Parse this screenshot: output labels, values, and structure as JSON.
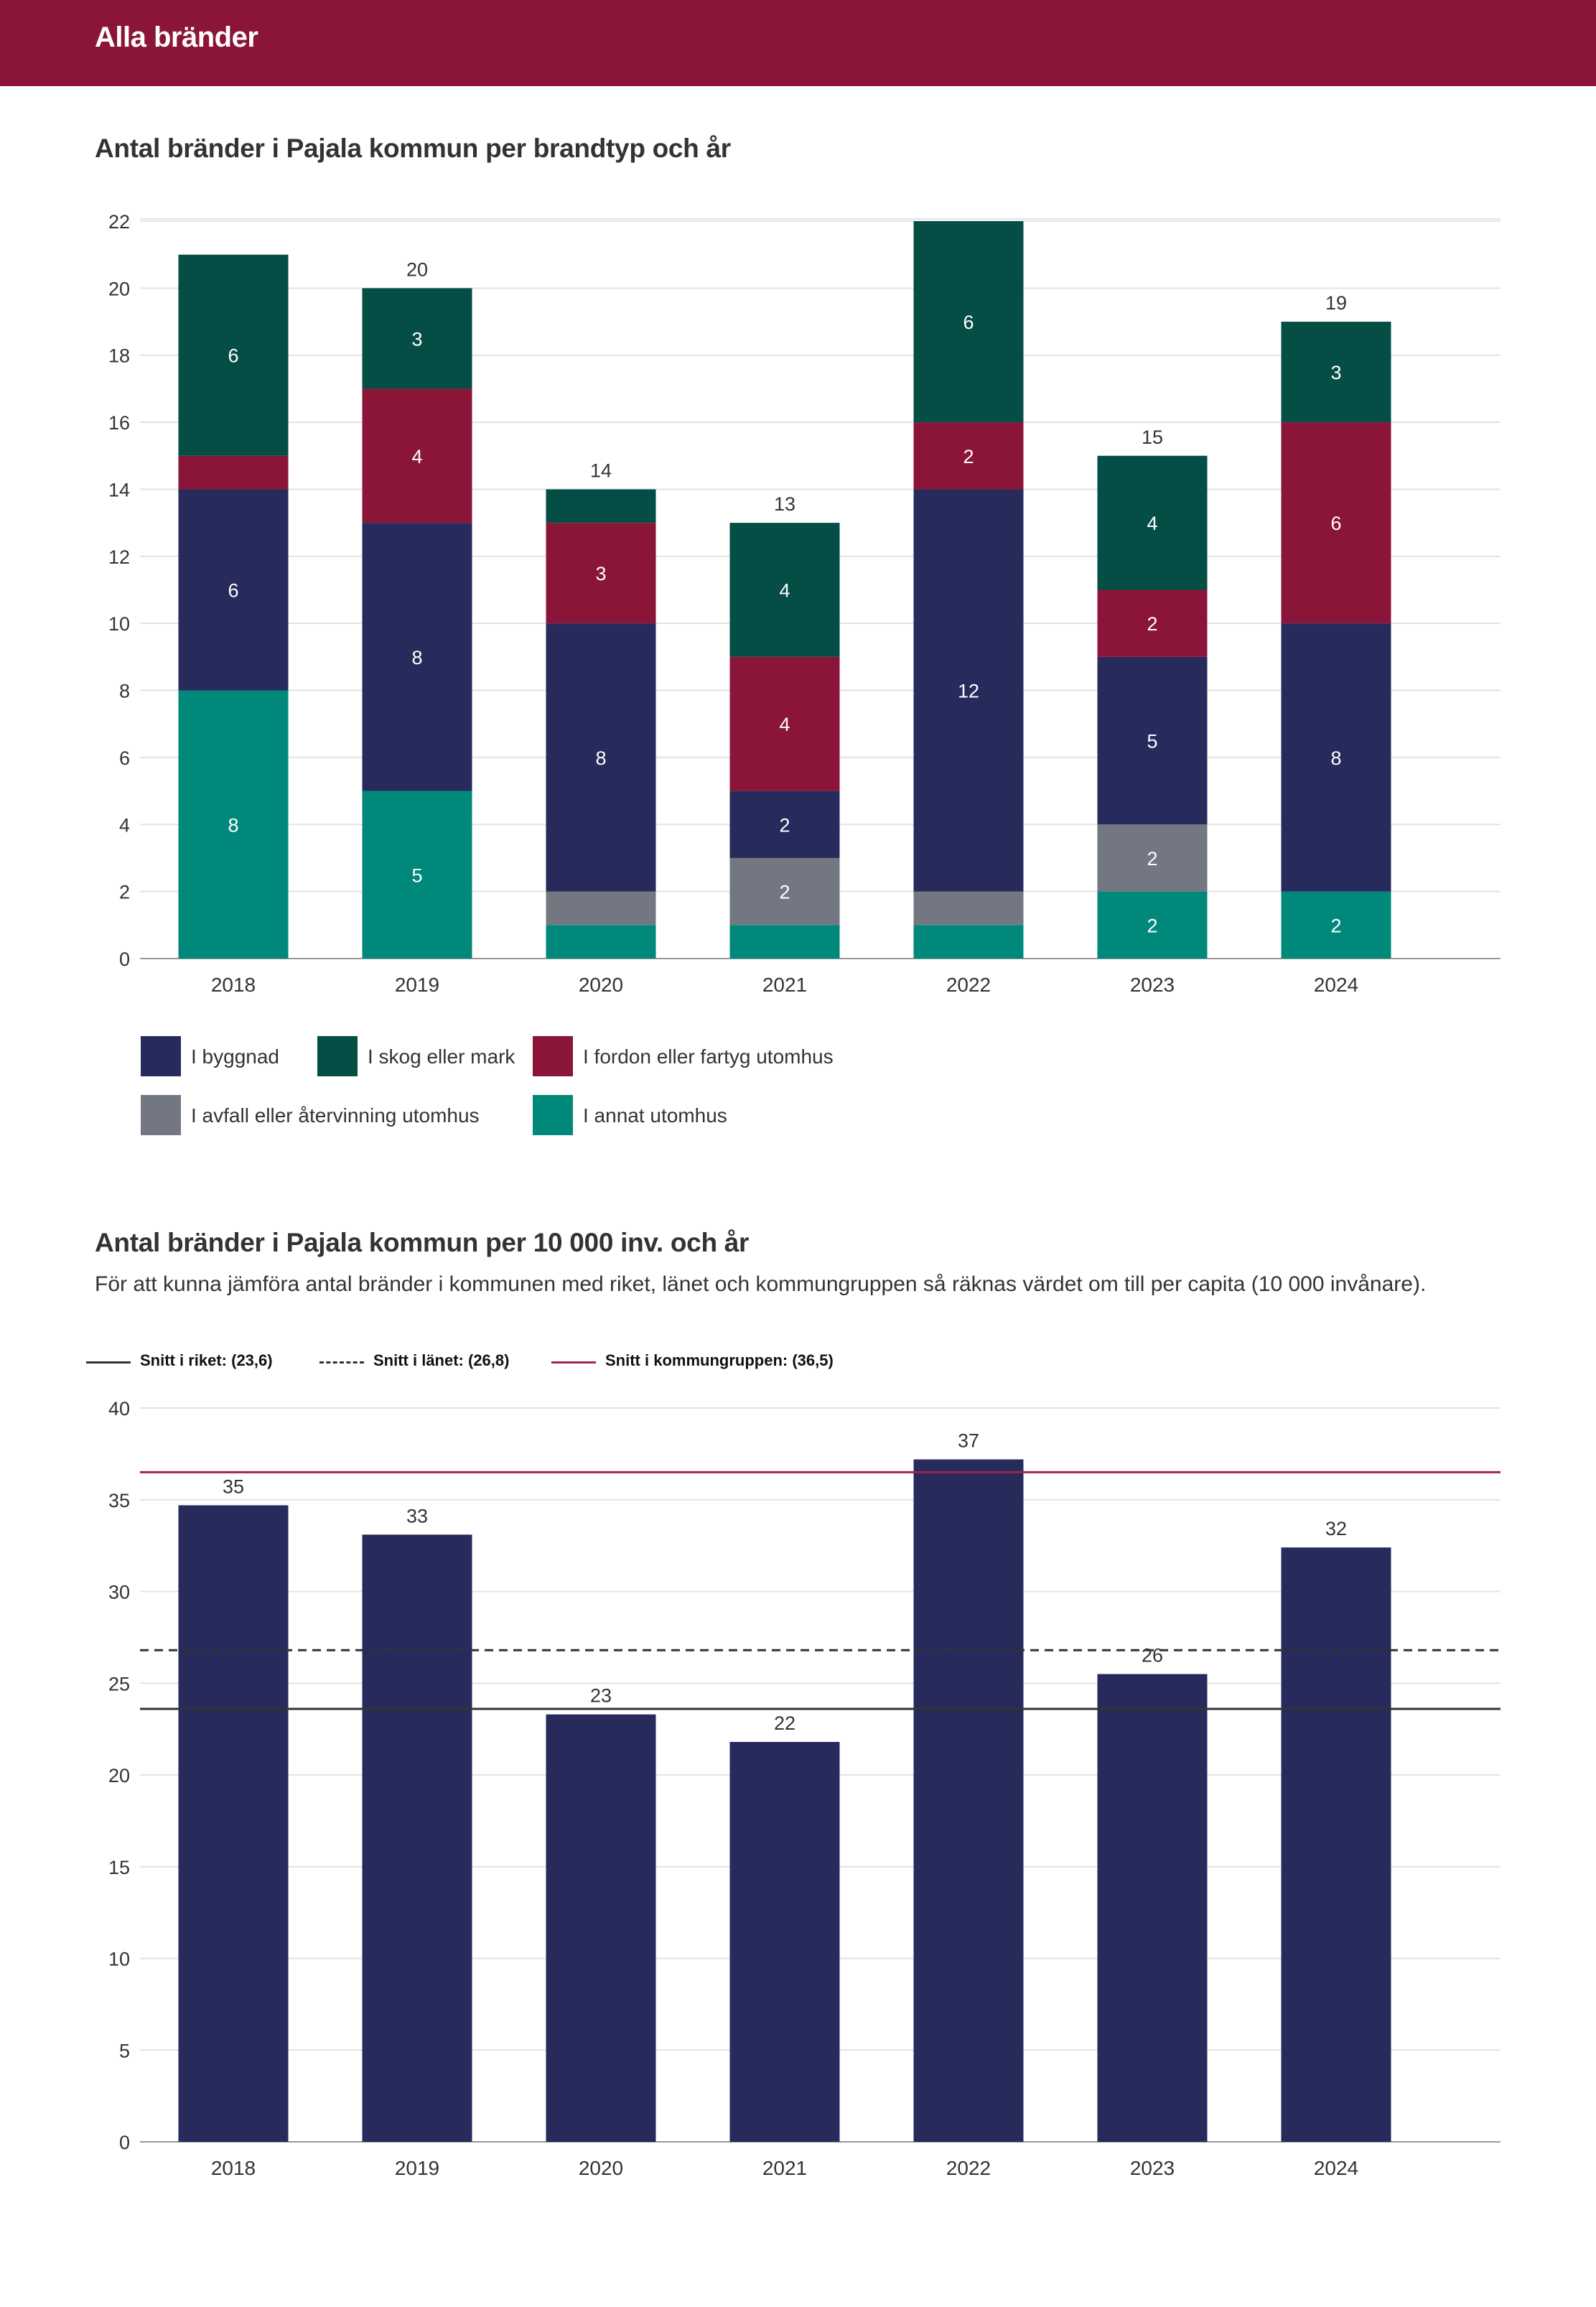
{
  "header": {
    "title": "Alla bränder"
  },
  "chart1": {
    "heading": "Antal bränder i Pajala kommun per brandtyp och år"
  },
  "chart2": {
    "heading": "Antal bränder i Pajala kommun per 10 000 inv. och år",
    "subtitle": "För att kunna jämföra antal bränder i kommunen med riket, länet och kommungruppen så räknas värdet om till per capita (10 000 invånare)."
  },
  "colors": {
    "header": "#8b1538",
    "byggnad": "#262b5c",
    "skog": "#044e45",
    "fordon": "#8b1538",
    "avfall": "#737781",
    "annat": "#00897b",
    "bar2": "#262b5c",
    "riket": "#333333",
    "lanet": "#333333",
    "kommungrupp": "#a3234a"
  },
  "chart_data": [
    {
      "type": "bar",
      "stacked": true,
      "title": "Antal bränder i Pajala kommun per brandtyp och år",
      "categories": [
        "2018",
        "2019",
        "2020",
        "2021",
        "2022",
        "2023",
        "2024"
      ],
      "series": [
        {
          "name": "I annat utomhus",
          "key": "annat",
          "values": [
            8,
            5,
            1,
            1,
            1,
            2,
            2
          ],
          "labels": [
            "8",
            "5",
            "",
            "",
            "",
            "2",
            "2"
          ]
        },
        {
          "name": "I avfall eller återvinning utomhus",
          "key": "avfall",
          "values": [
            0,
            0,
            1,
            2,
            1,
            2,
            0
          ],
          "labels": [
            "",
            "",
            "",
            "2",
            "",
            "2",
            ""
          ]
        },
        {
          "name": "I byggnad",
          "key": "byggnad",
          "values": [
            6,
            8,
            8,
            2,
            12,
            5,
            8
          ],
          "labels": [
            "6",
            "8",
            "8",
            "2",
            "12",
            "5",
            "8"
          ]
        },
        {
          "name": "I fordon eller fartyg utomhus",
          "key": "fordon",
          "values": [
            1,
            4,
            3,
            4,
            2,
            2,
            6
          ],
          "labels": [
            "",
            "4",
            "3",
            "4",
            "2",
            "2",
            "6"
          ]
        },
        {
          "name": "I skog eller mark",
          "key": "skog",
          "values": [
            6,
            3,
            1,
            4,
            6,
            4,
            3
          ],
          "labels": [
            "6",
            "3",
            "",
            "4",
            "6",
            "4",
            "3"
          ]
        }
      ],
      "totals": [
        "",
        "20",
        "14",
        "13",
        "",
        "15",
        "19"
      ],
      "yticks": [
        0,
        2,
        4,
        6,
        8,
        10,
        12,
        14,
        16,
        18,
        20,
        22
      ],
      "ylim": [
        0,
        22
      ],
      "legend": [
        {
          "key": "byggnad",
          "label": "I byggnad"
        },
        {
          "key": "skog",
          "label": "I skog eller mark"
        },
        {
          "key": "fordon",
          "label": "I fordon eller fartyg utomhus"
        },
        {
          "key": "avfall",
          "label": "I avfall eller återvinning utomhus"
        },
        {
          "key": "annat",
          "label": "I annat utomhus"
        }
      ]
    },
    {
      "type": "bar",
      "title": "Antal bränder i Pajala kommun per 10 000 inv. och år",
      "categories": [
        "2018",
        "2019",
        "2020",
        "2021",
        "2022",
        "2023",
        "2024"
      ],
      "values": [
        34.7,
        33.1,
        23.3,
        21.8,
        37.2,
        25.5,
        32.4
      ],
      "labels": [
        "35",
        "33",
        "23",
        "22",
        "37",
        "26",
        "32"
      ],
      "yticks": [
        0,
        5,
        10,
        15,
        20,
        25,
        30,
        35,
        40
      ],
      "ylim": [
        0,
        40
      ],
      "reference_lines": [
        {
          "key": "riket",
          "label": "Snitt i riket: (23,6)",
          "value": 23.6,
          "style": "solid"
        },
        {
          "key": "lanet",
          "label": "Snitt i länet: (26,8)",
          "value": 26.8,
          "style": "dashed"
        },
        {
          "key": "kommungrupp",
          "label": "Snitt i kommungruppen: (36,5)",
          "value": 36.5,
          "style": "solid"
        }
      ]
    }
  ]
}
